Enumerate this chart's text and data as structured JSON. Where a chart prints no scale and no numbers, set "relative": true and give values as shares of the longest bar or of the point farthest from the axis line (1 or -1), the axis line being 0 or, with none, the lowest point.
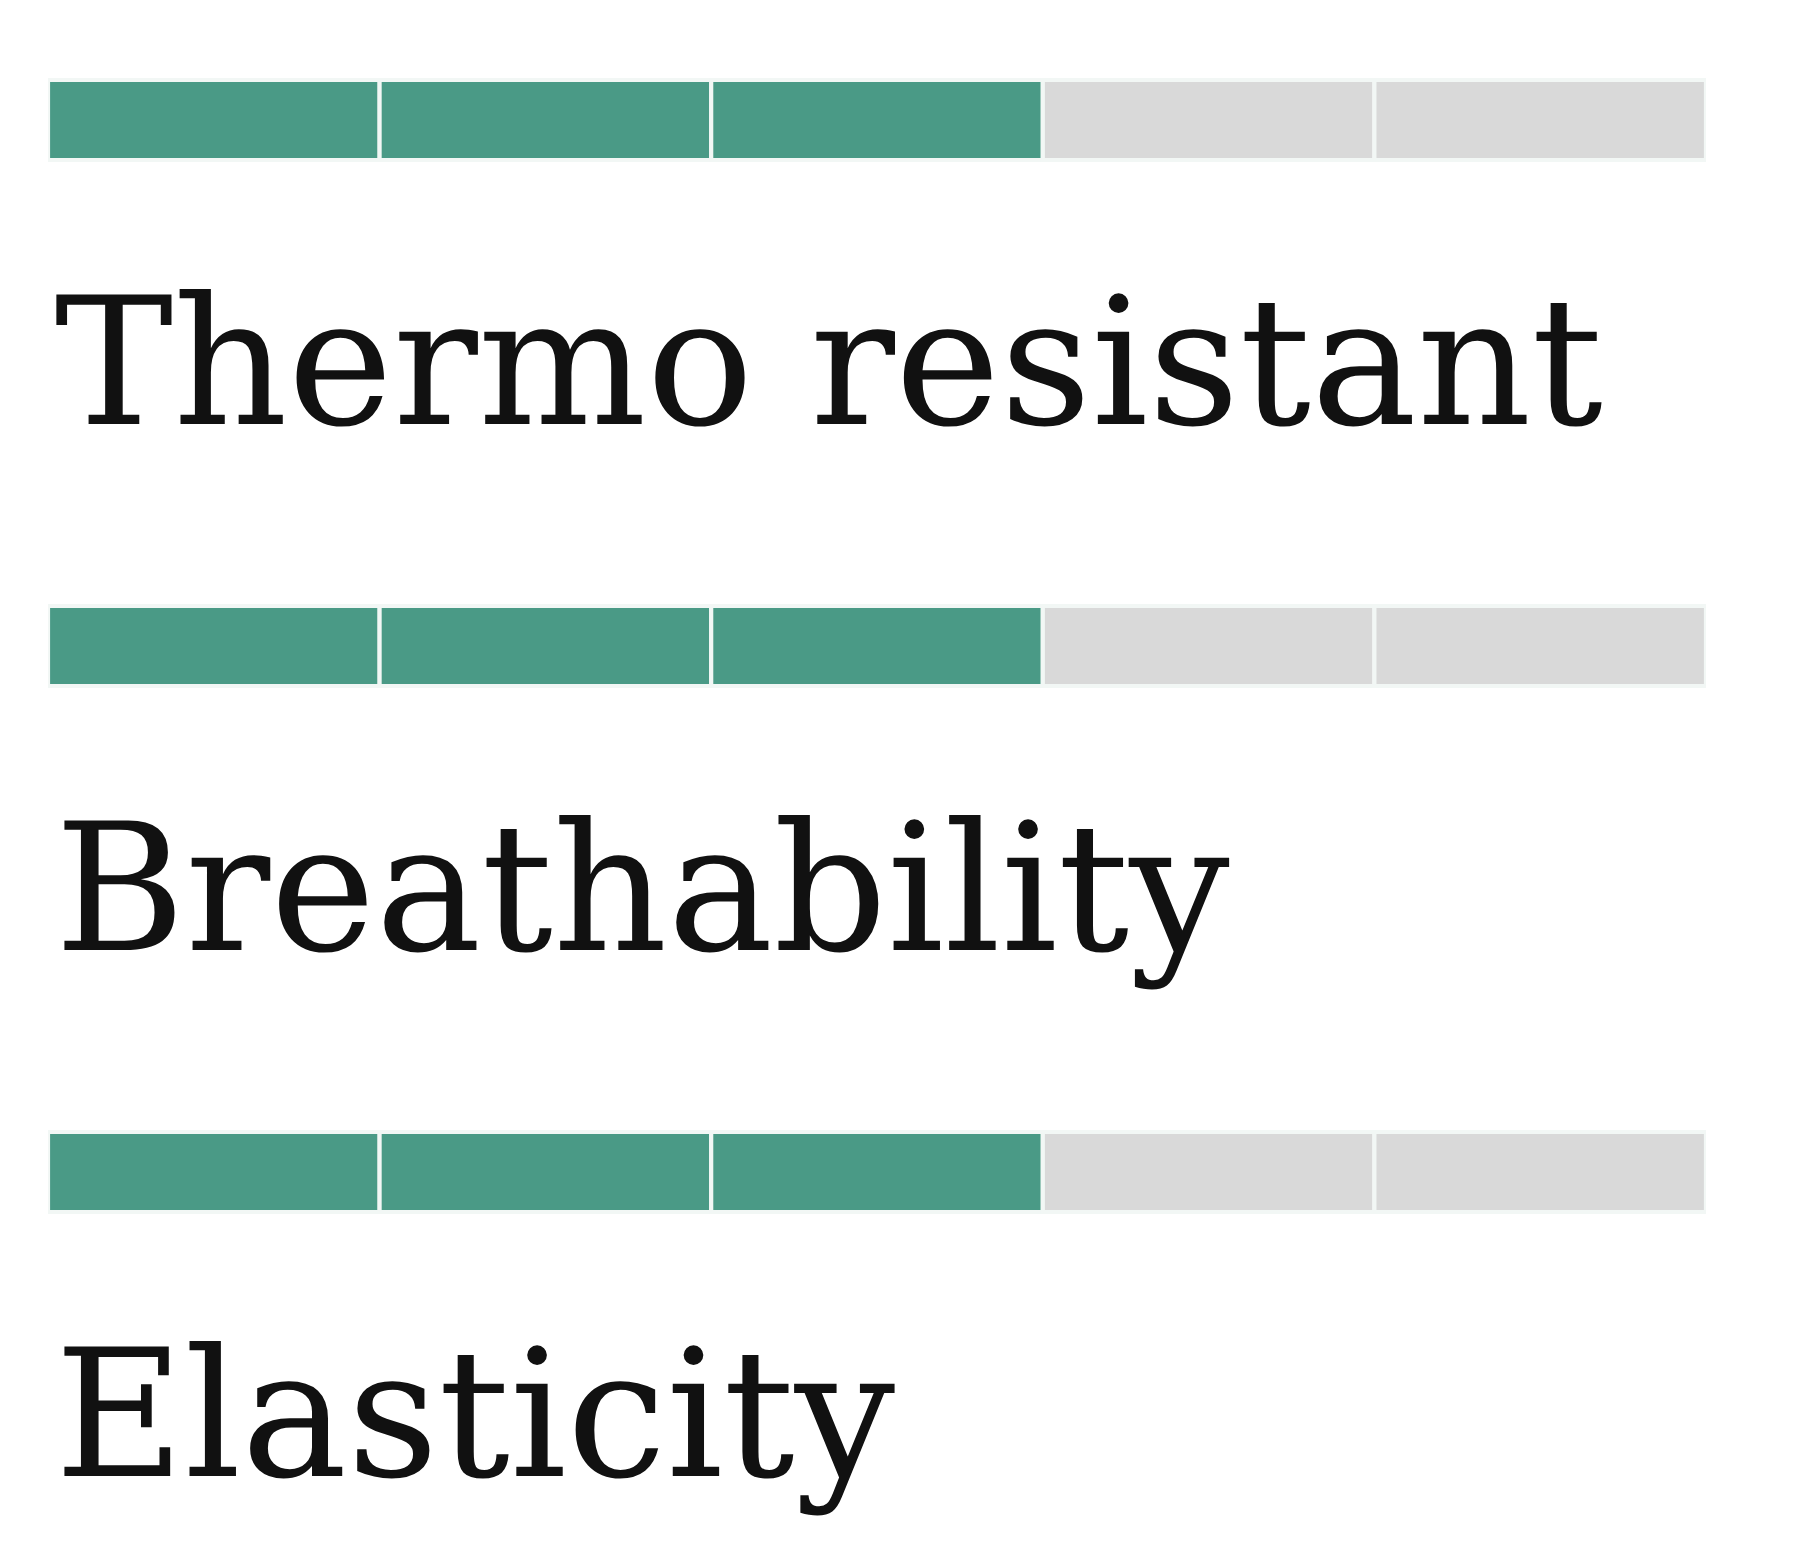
{
  "chart_data": {
    "type": "bar",
    "orientation": "horizontal",
    "stacked": true,
    "relative": true,
    "categories": [
      "Thermo resistant",
      "Breathability",
      "Elasticity"
    ],
    "series": [
      {
        "color": "#4a9a86",
        "values": [
          0.2,
          0.2,
          0.2
        ]
      },
      {
        "color": "#4a9a86",
        "values": [
          0.2,
          0.2,
          0.2
        ]
      },
      {
        "color": "#4a9a86",
        "values": [
          0.2,
          0.2,
          0.2
        ]
      },
      {
        "color": "#d9d9d9",
        "values": [
          0.2,
          0.2,
          0.2
        ]
      },
      {
        "color": "#d9d9d9",
        "values": [
          0.2,
          0.2,
          0.2
        ]
      }
    ]
  }
}
